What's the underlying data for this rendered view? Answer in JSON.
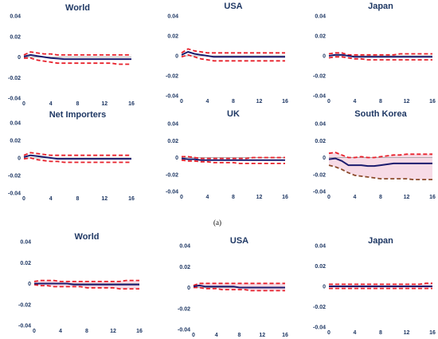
{
  "figure": {
    "caption": "(a)"
  },
  "colors": {
    "ci": "#e8202a",
    "ci_alt": "#8b4a2a",
    "irf": "#1c1c6e",
    "zero": "#999999",
    "band": "#f7dbe6",
    "text": "#1f3864"
  },
  "chart_data": [
    {
      "type": "line",
      "title": "World",
      "x": [
        0,
        1,
        2,
        3,
        4,
        5,
        6,
        7,
        8,
        9,
        10,
        11,
        12,
        13,
        14,
        15,
        16
      ],
      "ylim": [
        -0.04,
        0.04
      ],
      "yticks": [
        "0.04",
        "0.02",
        "0",
        "-0.02",
        "-0.04"
      ],
      "xticks": [
        "0",
        "4",
        "8",
        "12",
        "16"
      ],
      "series": [
        {
          "role": "upper",
          "values": [
            0.002,
            0.005,
            0.004,
            0.003,
            0.003,
            0.002,
            0.002,
            0.002,
            0.002,
            0.002,
            0.002,
            0.002,
            0.002,
            0.002,
            0.002,
            0.002,
            0.002
          ]
        },
        {
          "role": "irf",
          "values": [
            0.0005,
            0.002,
            0.001,
            0.0,
            -0.001,
            -0.0015,
            -0.002,
            -0.002,
            -0.002,
            -0.002,
            -0.002,
            -0.002,
            -0.002,
            -0.002,
            -0.002,
            -0.002,
            -0.002
          ]
        },
        {
          "role": "lower",
          "values": [
            -0.001,
            -0.001,
            -0.003,
            -0.004,
            -0.005,
            -0.006,
            -0.006,
            -0.006,
            -0.006,
            -0.006,
            -0.006,
            -0.006,
            -0.006,
            -0.006,
            -0.007,
            -0.007,
            -0.007
          ]
        }
      ]
    },
    {
      "type": "line",
      "title": "USA",
      "x": [
        0,
        1,
        2,
        3,
        4,
        5,
        6,
        7,
        8,
        9,
        10,
        11,
        12,
        13,
        14,
        15,
        16
      ],
      "ylim": [
        -0.04,
        0.04
      ],
      "yticks": [
        "0.04",
        "0.02",
        "0",
        "-0.02",
        "-0.04"
      ],
      "xticks": [
        "0",
        "4",
        "8",
        "12",
        "16"
      ],
      "series": [
        {
          "role": "upper",
          "values": [
            0.003,
            0.007,
            0.005,
            0.004,
            0.003,
            0.003,
            0.003,
            0.003,
            0.003,
            0.003,
            0.003,
            0.003,
            0.003,
            0.003,
            0.003,
            0.003,
            0.003
          ]
        },
        {
          "role": "irf",
          "values": [
            0.001,
            0.004,
            0.002,
            0.001,
            0.0,
            -0.001,
            -0.001,
            -0.001,
            -0.001,
            -0.001,
            -0.001,
            -0.001,
            -0.001,
            -0.001,
            -0.001,
            -0.001,
            -0.001
          ]
        },
        {
          "role": "lower",
          "values": [
            -0.001,
            0.001,
            -0.001,
            -0.003,
            -0.004,
            -0.005,
            -0.005,
            -0.005,
            -0.005,
            -0.005,
            -0.005,
            -0.005,
            -0.005,
            -0.005,
            -0.005,
            -0.005,
            -0.005
          ]
        }
      ]
    },
    {
      "type": "line",
      "title": "Japan",
      "x": [
        0,
        1,
        2,
        3,
        4,
        5,
        6,
        7,
        8,
        9,
        10,
        11,
        12,
        13,
        14,
        15,
        16
      ],
      "ylim": [
        -0.04,
        0.04
      ],
      "yticks": [
        "0.04",
        "0.02",
        "0",
        "-0.02",
        "-0.04"
      ],
      "xticks": [
        "0",
        "4",
        "8",
        "12",
        "16"
      ],
      "series": [
        {
          "role": "upper",
          "values": [
            0.002,
            0.003,
            0.003,
            0.001,
            0.001,
            0.001,
            0.001,
            0.001,
            0.001,
            0.001,
            0.001,
            0.002,
            0.002,
            0.002,
            0.002,
            0.002,
            0.002
          ]
        },
        {
          "role": "irf",
          "values": [
            0.0,
            0.001,
            0.001,
            0.0,
            -0.001,
            -0.001,
            -0.001,
            -0.001,
            -0.001,
            -0.001,
            -0.001,
            -0.001,
            -0.001,
            -0.001,
            -0.001,
            -0.001,
            -0.001
          ]
        },
        {
          "role": "lower",
          "values": [
            -0.002,
            -0.001,
            -0.001,
            -0.002,
            -0.003,
            -0.003,
            -0.004,
            -0.004,
            -0.004,
            -0.004,
            -0.004,
            -0.004,
            -0.004,
            -0.004,
            -0.004,
            -0.004,
            -0.004
          ]
        }
      ]
    },
    {
      "type": "line",
      "title": "Net Importers",
      "x": [
        0,
        1,
        2,
        3,
        4,
        5,
        6,
        7,
        8,
        9,
        10,
        11,
        12,
        13,
        14,
        15,
        16
      ],
      "ylim": [
        -0.04,
        0.04
      ],
      "yticks": [
        "0.04",
        "0.02",
        "0",
        "-0.02",
        "-0.04"
      ],
      "xticks": [
        "0",
        "4",
        "8",
        "12",
        "16"
      ],
      "series": [
        {
          "role": "upper",
          "values": [
            0.003,
            0.006,
            0.005,
            0.004,
            0.003,
            0.003,
            0.003,
            0.003,
            0.003,
            0.003,
            0.003,
            0.003,
            0.003,
            0.003,
            0.003,
            0.003,
            0.003
          ]
        },
        {
          "role": "irf",
          "values": [
            0.001,
            0.003,
            0.002,
            0.001,
            0.0,
            -0.001,
            -0.001,
            -0.001,
            -0.001,
            -0.001,
            -0.001,
            -0.001,
            -0.001,
            -0.001,
            -0.001,
            -0.001,
            -0.001
          ]
        },
        {
          "role": "lower",
          "values": [
            -0.001,
            0.0,
            -0.002,
            -0.003,
            -0.004,
            -0.004,
            -0.005,
            -0.005,
            -0.005,
            -0.005,
            -0.005,
            -0.005,
            -0.005,
            -0.005,
            -0.005,
            -0.005,
            -0.005
          ]
        }
      ]
    },
    {
      "type": "line",
      "title": "UK",
      "x": [
        0,
        1,
        2,
        3,
        4,
        5,
        6,
        7,
        8,
        9,
        10,
        11,
        12,
        13,
        14,
        15,
        16
      ],
      "ylim": [
        -0.04,
        0.04
      ],
      "yticks": [
        "0.04",
        "0.02",
        "0",
        "-0.02",
        "-0.04"
      ],
      "xticks": [
        "0",
        "4",
        "8",
        "12",
        "16"
      ],
      "series": [
        {
          "role": "upper",
          "values": [
            0.001,
            0.001,
            0.0,
            -0.001,
            -0.001,
            -0.001,
            -0.001,
            -0.001,
            -0.001,
            -0.001,
            -0.001,
            0.0,
            0.0,
            0.0,
            0.0,
            0.0,
            0.0
          ]
        },
        {
          "role": "irf",
          "values": [
            -0.001,
            -0.002,
            -0.002,
            -0.003,
            -0.003,
            -0.003,
            -0.003,
            -0.003,
            -0.003,
            -0.003,
            -0.003,
            -0.003,
            -0.003,
            -0.003,
            -0.003,
            -0.003,
            -0.003
          ]
        },
        {
          "role": "lower",
          "values": [
            -0.003,
            -0.004,
            -0.004,
            -0.005,
            -0.005,
            -0.006,
            -0.006,
            -0.006,
            -0.006,
            -0.007,
            -0.007,
            -0.007,
            -0.007,
            -0.007,
            -0.007,
            -0.007,
            -0.007
          ]
        }
      ]
    },
    {
      "type": "line",
      "title": "South Korea",
      "x": [
        0,
        1,
        2,
        3,
        4,
        5,
        6,
        7,
        8,
        9,
        10,
        11,
        12,
        13,
        14,
        15,
        16
      ],
      "ylim": [
        -0.04,
        0.04
      ],
      "yticks": [
        "0.04",
        "0.02",
        "0",
        "-0.02",
        "-0.04"
      ],
      "xticks": [
        "0",
        "4",
        "8",
        "12",
        "16"
      ],
      "series": [
        {
          "role": "upper",
          "values": [
            0.005,
            0.006,
            0.003,
            0.0,
            0.0,
            0.001,
            0.0,
            0.0,
            0.001,
            0.002,
            0.003,
            0.003,
            0.004,
            0.004,
            0.004,
            0.004,
            0.004
          ]
        },
        {
          "role": "irf",
          "values": [
            -0.002,
            -0.001,
            -0.004,
            -0.009,
            -0.009,
            -0.009,
            -0.01,
            -0.01,
            -0.009,
            -0.008,
            -0.007,
            -0.007,
            -0.007,
            -0.007,
            -0.007,
            -0.007,
            -0.007
          ]
        },
        {
          "role": "lower",
          "values": [
            -0.009,
            -0.011,
            -0.014,
            -0.018,
            -0.021,
            -0.022,
            -0.023,
            -0.024,
            -0.025,
            -0.025,
            -0.025,
            -0.025,
            -0.025,
            -0.026,
            -0.026,
            -0.026,
            -0.026
          ]
        }
      ]
    },
    {
      "type": "line",
      "title": "World",
      "x": [
        0,
        1,
        2,
        3,
        4,
        5,
        6,
        7,
        8,
        9,
        10,
        11,
        12,
        13,
        14,
        15,
        16
      ],
      "ylim": [
        -0.04,
        0.04
      ],
      "yticks": [
        "0.04",
        "0.02",
        "0",
        "-0.02",
        "-0.04"
      ],
      "xticks": [
        "0",
        "4",
        "8",
        "12",
        "16"
      ],
      "series": [
        {
          "role": "upper",
          "values": [
            0.002,
            0.003,
            0.003,
            0.003,
            0.002,
            0.002,
            0.002,
            0.002,
            0.002,
            0.002,
            0.002,
            0.002,
            0.002,
            0.002,
            0.003,
            0.003,
            0.003
          ]
        },
        {
          "role": "irf",
          "values": [
            0.0,
            0.0,
            0.0,
            0.0,
            0.0,
            0.0,
            -0.001,
            -0.001,
            -0.001,
            -0.001,
            -0.001,
            -0.001,
            -0.001,
            -0.001,
            -0.001,
            -0.001,
            -0.001
          ]
        },
        {
          "role": "lower",
          "values": [
            -0.001,
            -0.002,
            -0.002,
            -0.003,
            -0.003,
            -0.003,
            -0.003,
            -0.003,
            -0.004,
            -0.004,
            -0.004,
            -0.004,
            -0.004,
            -0.005,
            -0.005,
            -0.005,
            -0.005
          ]
        }
      ]
    },
    {
      "type": "line",
      "title": "USA",
      "x": [
        0,
        1,
        2,
        3,
        4,
        5,
        6,
        7,
        8,
        9,
        10,
        11,
        12,
        13,
        14,
        15,
        16
      ],
      "ylim": [
        -0.04,
        0.04
      ],
      "yticks": [
        "0.04",
        "0.02",
        "0",
        "-0.02",
        "-0.04"
      ],
      "xticks": [
        "0",
        "4",
        "8",
        "12",
        "16"
      ],
      "series": [
        {
          "role": "upper",
          "values": [
            0.002,
            0.004,
            0.004,
            0.004,
            0.004,
            0.004,
            0.004,
            0.004,
            0.004,
            0.004,
            0.004,
            0.004,
            0.004,
            0.004,
            0.004,
            0.004,
            0.004
          ]
        },
        {
          "role": "irf",
          "values": [
            0.001,
            0.002,
            0.001,
            0.001,
            0.001,
            0.001,
            0.001,
            0.001,
            0.0,
            0.0,
            0.0,
            0.0,
            0.0,
            0.0,
            0.0,
            0.0,
            0.0
          ]
        },
        {
          "role": "lower",
          "values": [
            0.0,
            0.0,
            -0.001,
            -0.001,
            -0.001,
            -0.002,
            -0.002,
            -0.002,
            -0.002,
            -0.002,
            -0.003,
            -0.003,
            -0.003,
            -0.003,
            -0.003,
            -0.003,
            -0.003
          ]
        }
      ]
    },
    {
      "type": "line",
      "title": "Japan",
      "x": [
        0,
        1,
        2,
        3,
        4,
        5,
        6,
        7,
        8,
        9,
        10,
        11,
        12,
        13,
        14,
        15,
        16
      ],
      "ylim": [
        -0.04,
        0.04
      ],
      "yticks": [
        "0.04",
        "0.02",
        "0",
        "-0.02",
        "-0.04"
      ],
      "xticks": [
        "0",
        "4",
        "8",
        "12",
        "16"
      ],
      "series": [
        {
          "role": "upper",
          "values": [
            0.002,
            0.002,
            0.002,
            0.002,
            0.002,
            0.002,
            0.002,
            0.002,
            0.002,
            0.002,
            0.002,
            0.002,
            0.002,
            0.002,
            0.002,
            0.003,
            0.003
          ]
        },
        {
          "role": "irf",
          "values": [
            0.0,
            0.0,
            0.0,
            0.0,
            0.0,
            0.0,
            0.0,
            0.0,
            0.0,
            0.0,
            0.0,
            0.0,
            0.0,
            0.0,
            0.0,
            0.0,
            0.0
          ]
        },
        {
          "role": "lower",
          "values": [
            -0.002,
            -0.002,
            -0.002,
            -0.002,
            -0.002,
            -0.002,
            -0.002,
            -0.002,
            -0.002,
            -0.002,
            -0.002,
            -0.002,
            -0.002,
            -0.002,
            -0.002,
            -0.002,
            -0.002
          ]
        }
      ]
    }
  ]
}
